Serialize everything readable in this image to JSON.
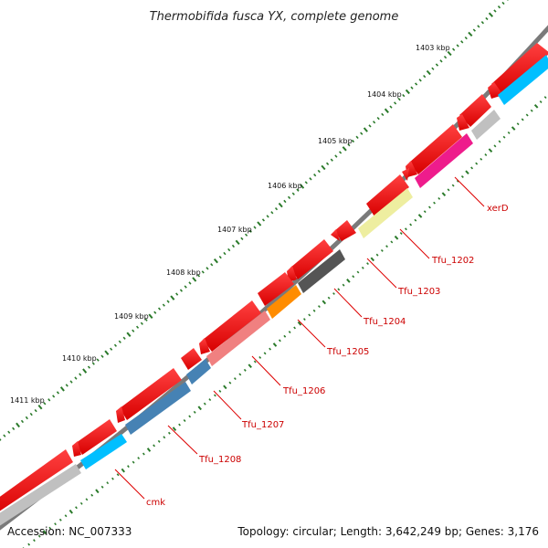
{
  "title": "Thermobifida fusca YX, complete genome",
  "footer": {
    "accession": "Accession: NC_007333",
    "summary": "Topology: circular; Length: 3,642,249 bp; Genes: 3,176"
  },
  "scale_labels": [
    "1403 kbp",
    "1404 kbp",
    "1405 kbp",
    "1406 kbp",
    "1407 kbp",
    "1408 kbp",
    "1409 kbp",
    "1410 kbp",
    "1411 kbp"
  ],
  "gene_labels": [
    "xerD",
    "Tfu_1202",
    "Tfu_1203",
    "Tfu_1204",
    "Tfu_1205",
    "Tfu_1206",
    "Tfu_1207",
    "Tfu_1208",
    "cmk"
  ],
  "colors": {
    "backbone": "#777777",
    "cds": "#ee0000",
    "tick": "#2a7a2a",
    "label_line": "#dd0000",
    "xerD": "#ee1c8c",
    "Tfu_1202": "#eeeea0",
    "Tfu_1203": "#ffffff",
    "Tfu_1204": "#555555",
    "Tfu_1205": "#ff8c00",
    "Tfu_1206": "#f08080",
    "Tfu_1207": "#4682b4",
    "Tfu_1208": "#4682b4",
    "cmk": "#00bfff",
    "extra_blue": "#00bfff",
    "extra_gray": "#c0c0c0"
  }
}
